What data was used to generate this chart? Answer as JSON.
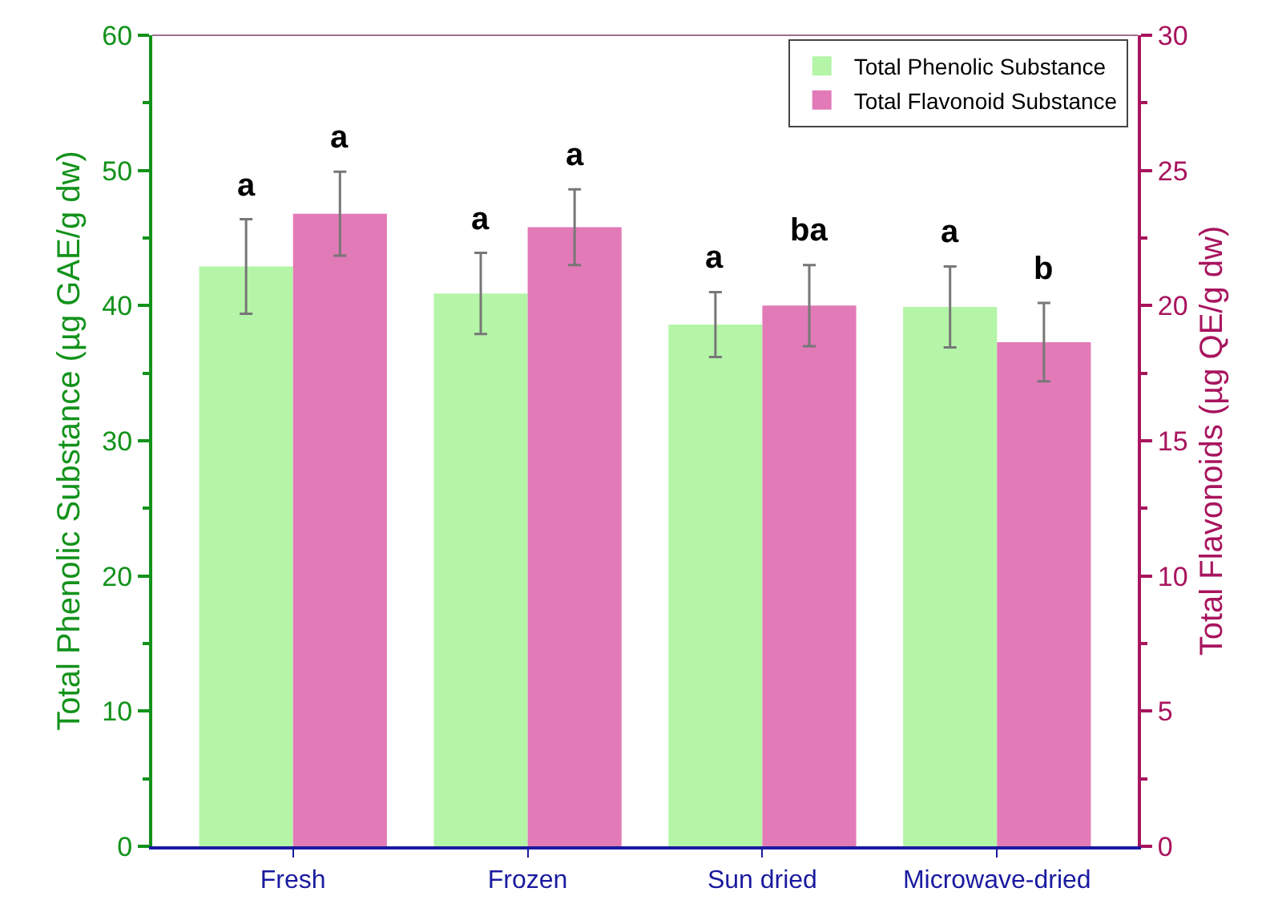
{
  "chart_data": {
    "type": "bar",
    "categories": [
      "Fresh",
      "Frozen",
      "Sun dried",
      "Microwave-dried"
    ],
    "ylabel": "Total Phenolic Substance (µg GAE/g dw)",
    "y2label": "Total Flavonoids (µg QE/g dw)",
    "ylim": [
      0,
      60
    ],
    "yticks": [
      0,
      10,
      20,
      30,
      40,
      50,
      60
    ],
    "y2lim": [
      0,
      30
    ],
    "y2ticks": [
      0,
      5,
      10,
      15,
      20,
      25,
      30
    ],
    "series": [
      {
        "name": "Total Phenolic Substance",
        "color": "#b4f5a8",
        "values": [
          42.9,
          40.9,
          38.6,
          39.9
        ],
        "errors": [
          3.5,
          3.0,
          2.4,
          3.0
        ]
      },
      {
        "name": "Total Flavonoid Substance",
        "color": "#e27ab8",
        "axis": "y2",
        "values": [
          23.4,
          22.9,
          20.0,
          18.65
        ],
        "errors": [
          1.55,
          1.4,
          1.5,
          1.45
        ]
      }
    ],
    "annotations": [
      "a",
      "a",
      "a",
      "a",
      "a",
      "ba",
      "a",
      "b"
    ],
    "grid": false,
    "legend": "top right"
  }
}
